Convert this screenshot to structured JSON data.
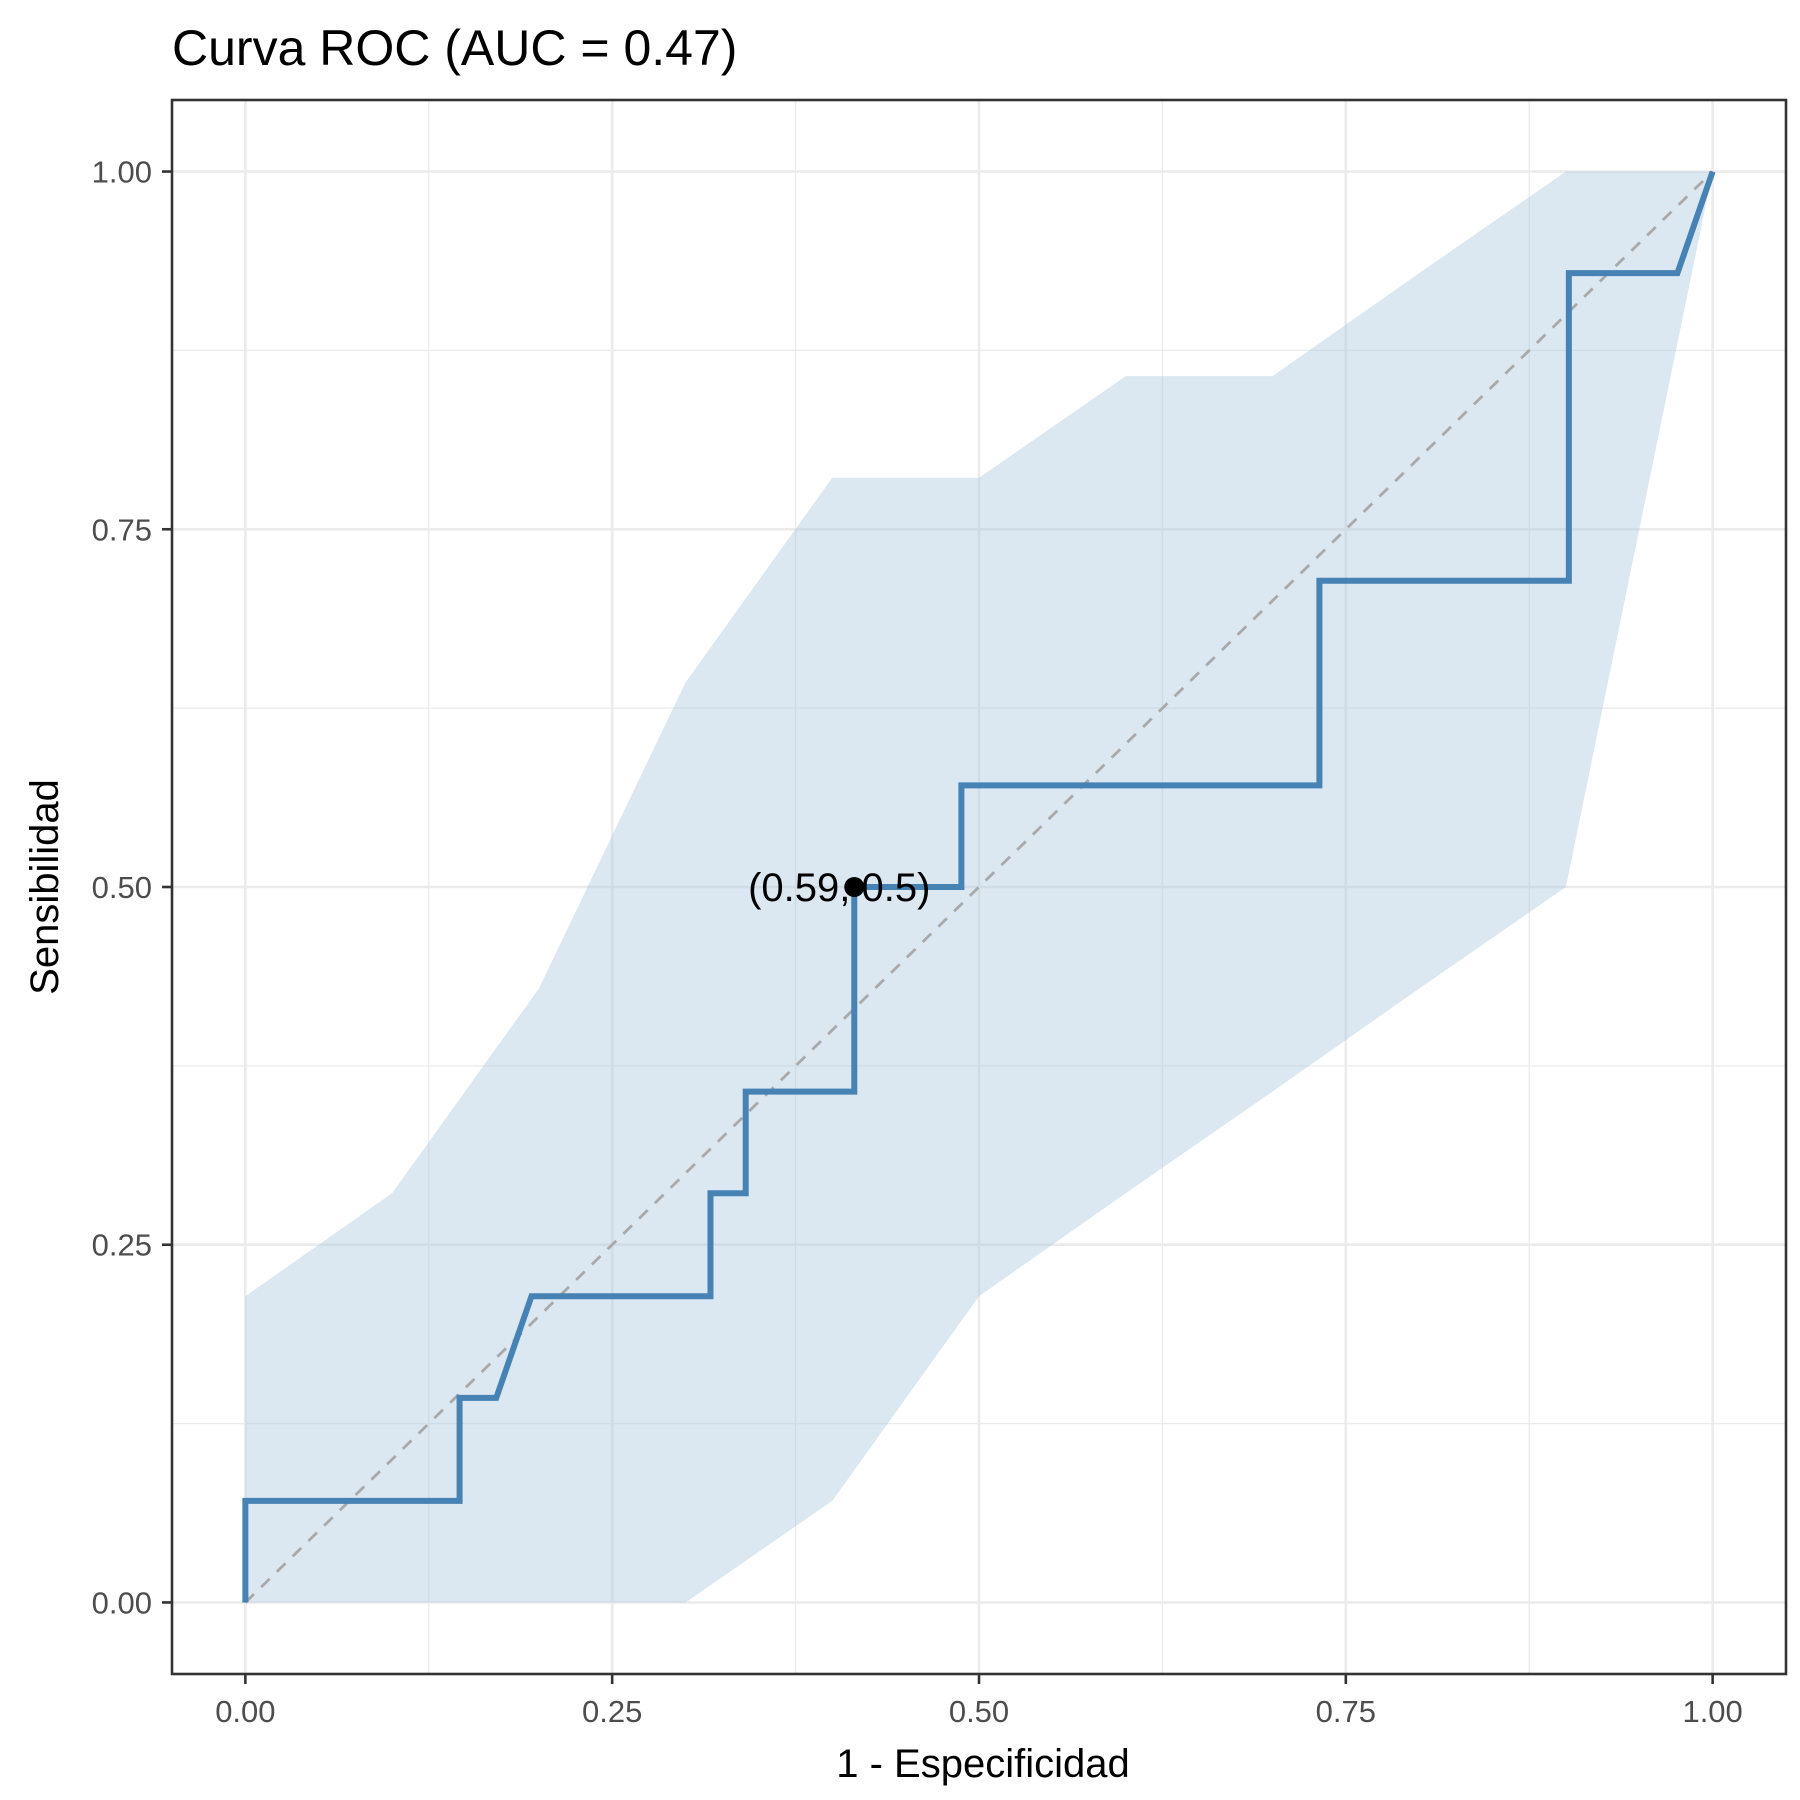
{
  "chart_data": {
    "type": "line",
    "title": "Curva ROC (AUC = 0.47)",
    "xlabel": "1 - Especificidad",
    "ylabel": "Sensibilidad",
    "xlim": [
      -0.05,
      1.05
    ],
    "ylim": [
      -0.05,
      1.05
    ],
    "x_ticks": [
      {
        "value": 0.0,
        "label": "0.00"
      },
      {
        "value": 0.25,
        "label": "0.25"
      },
      {
        "value": 0.5,
        "label": "0.50"
      },
      {
        "value": 0.75,
        "label": "0.75"
      },
      {
        "value": 1.0,
        "label": "1.00"
      }
    ],
    "y_ticks": [
      {
        "value": 0.0,
        "label": "0.00"
      },
      {
        "value": 0.25,
        "label": "0.25"
      },
      {
        "value": 0.5,
        "label": "0.50"
      },
      {
        "value": 0.75,
        "label": "0.75"
      },
      {
        "value": 1.0,
        "label": "1.00"
      }
    ],
    "grid": true,
    "roc_curve": {
      "color": "#4682b4",
      "points": [
        [
          0.0,
          0.0
        ],
        [
          0.0,
          0.071
        ],
        [
          0.146,
          0.071
        ],
        [
          0.146,
          0.143
        ],
        [
          0.171,
          0.143
        ],
        [
          0.195,
          0.214
        ],
        [
          0.317,
          0.214
        ],
        [
          0.317,
          0.286
        ],
        [
          0.341,
          0.286
        ],
        [
          0.341,
          0.357
        ],
        [
          0.415,
          0.357
        ],
        [
          0.415,
          0.5
        ],
        [
          0.488,
          0.5
        ],
        [
          0.488,
          0.571
        ],
        [
          0.732,
          0.571
        ],
        [
          0.732,
          0.714
        ],
        [
          0.902,
          0.714
        ],
        [
          0.902,
          0.929
        ],
        [
          0.976,
          0.929
        ],
        [
          1.0,
          1.0
        ]
      ]
    },
    "confidence_band": {
      "color": "#a6c4dd",
      "x": [
        0.0,
        0.1,
        0.2,
        0.3,
        0.4,
        0.5,
        0.6,
        0.7,
        0.8,
        0.9,
        1.0
      ],
      "upper": [
        0.214,
        0.286,
        0.429,
        0.643,
        0.786,
        0.786,
        0.857,
        0.857,
        0.929,
        1.0,
        1.0
      ],
      "lower": [
        0.0,
        0.0,
        0.0,
        0.0,
        0.071,
        0.214,
        0.286,
        0.357,
        0.429,
        0.5,
        1.0
      ]
    },
    "reference_line": {
      "from": [
        0,
        0
      ],
      "to": [
        1,
        1
      ],
      "style": "dashed",
      "color": "#a9a9a9"
    },
    "highlight_point": {
      "x": 0.415,
      "y": 0.5,
      "label": "(0.59, 0.5)"
    }
  }
}
